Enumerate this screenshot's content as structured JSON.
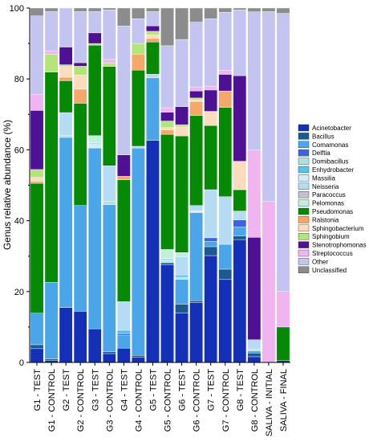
{
  "chart_data": {
    "type": "bar",
    "stacked": true,
    "ylabel": "Genus relative abundance (%)",
    "ylim": [
      0,
      100
    ],
    "yticks": [
      0,
      20,
      40,
      60,
      80,
      100
    ],
    "legend_position": "right",
    "categories": [
      "G1 - TEST",
      "G1 - CONTROL",
      "G2 - TEST",
      "G2 - CONTROL",
      "G3 - TEST",
      "G3 - CONTROL",
      "G4 - TEST",
      "G4 - CONTROL",
      "G5 - TEST",
      "G5 - CONTROL",
      "G6 - TEST",
      "G6 - CONTROL",
      "G7 - TEST",
      "G7 - CONTROL",
      "G8 - TEST",
      "G8 - CONTROL",
      "SALIVA - INITIAL",
      "SALIVA - FINAL"
    ],
    "series": [
      {
        "name": "Acinetobacter",
        "color": "#1530b8",
        "values": [
          3.5,
          0.5,
          15.5,
          14.5,
          9.5,
          2.5,
          4,
          1.5,
          62,
          22,
          11,
          17,
          30,
          20,
          34.5,
          1.5,
          0,
          0.5
        ]
      },
      {
        "name": "Bacillus",
        "color": "#1a5a8c",
        "values": [
          1,
          0.5,
          0,
          0,
          0,
          0.5,
          0,
          0.5,
          0,
          0.5,
          2,
          0.5,
          2.5,
          2.5,
          1,
          1,
          0,
          0
        ]
      },
      {
        "name": "Comamonas",
        "color": "#4aa6e8",
        "values": [
          8,
          21.5,
          48,
          30,
          51,
          41.5,
          3.5,
          58.5,
          17.5,
          0,
          5.5,
          25,
          1.5,
          6,
          2.5,
          0.5,
          0,
          0
        ]
      },
      {
        "name": "Delftia",
        "color": "#3c64e0",
        "values": [
          0,
          0,
          0,
          0,
          0,
          0,
          0.5,
          0,
          0,
          0,
          0,
          0,
          1,
          0,
          2,
          0,
          0,
          0
        ]
      },
      {
        "name": "Domibacillus",
        "color": "#a8e4e4",
        "values": [
          0,
          0,
          0.5,
          0,
          0,
          1,
          0,
          0,
          0,
          0.5,
          0.5,
          0,
          0,
          0,
          0,
          0.5,
          0,
          0
        ]
      },
      {
        "name": "Enhydrobacter",
        "color": "#5cc0ec",
        "values": [
          0,
          0,
          0,
          0,
          0,
          0,
          1,
          0,
          0,
          0,
          0.5,
          0,
          0,
          0,
          0,
          0,
          0,
          0
        ]
      },
      {
        "name": "Massilia",
        "color": "#d0eef6",
        "values": [
          0,
          0,
          0,
          0,
          1,
          0,
          0,
          0,
          0,
          0,
          0,
          0.5,
          0,
          0,
          0,
          0,
          0,
          0
        ]
      },
      {
        "name": "Neisseria",
        "color": "#b6dcf4",
        "values": [
          0,
          0,
          6.5,
          0,
          0.5,
          10,
          8,
          0.5,
          1,
          0.5,
          4,
          1.5,
          13.5,
          11.5,
          2.5,
          2.5,
          0,
          0
        ]
      },
      {
        "name": "Paracoccus",
        "color": "#c0c0d0",
        "values": [
          0,
          0,
          0,
          0,
          0,
          0,
          0,
          0,
          0,
          0,
          0,
          0,
          0,
          0,
          0,
          0,
          0,
          0
        ]
      },
      {
        "name": "Pelomonas",
        "color": "#bef0dc",
        "values": [
          0,
          0,
          0,
          0,
          2,
          0,
          0,
          0,
          0,
          2,
          1,
          0,
          0,
          0,
          0,
          0,
          0,
          0
        ]
      },
      {
        "name": "Pseudomonas",
        "color": "#068a06",
        "values": [
          33,
          59,
          9,
          29,
          25.5,
          28,
          34,
          21.5,
          9,
          26,
          26,
          25.5,
          18,
          21.5,
          6,
          0,
          0,
          9.5
        ]
      },
      {
        "name": "Ralstonia",
        "color": "#f6a86a",
        "values": [
          0.5,
          0,
          1,
          4,
          0,
          0,
          1,
          4.5,
          1,
          1,
          0,
          4,
          0,
          4,
          0,
          0,
          0,
          0
        ]
      },
      {
        "name": "Sphingobacterium",
        "color": "#fcdcbc",
        "values": [
          1,
          0,
          3,
          4,
          0,
          0,
          0,
          0,
          1,
          0.5,
          2,
          0.5,
          4,
          0,
          8,
          0,
          0,
          0
        ]
      },
      {
        "name": "Sphingobium",
        "color": "#b4e47a",
        "values": [
          2,
          5,
          0.5,
          2.5,
          0.5,
          1,
          0,
          3,
          1,
          1.5,
          0.5,
          0.5,
          0,
          0,
          0,
          0,
          0,
          0
        ]
      },
      {
        "name": "Stenotrophomonas",
        "color": "#4e1094",
        "values": [
          15,
          0,
          5,
          1,
          3,
          0,
          6,
          0,
          1.5,
          2,
          4,
          2,
          6,
          4,
          24,
          27,
          0,
          0
        ]
      },
      {
        "name": "Streptococcus",
        "color": "#f0b4f0",
        "values": [
          4,
          1,
          0,
          0,
          0,
          1,
          0,
          0,
          0,
          1,
          0,
          1,
          1,
          1,
          0,
          23,
          45,
          10
        ]
      },
      {
        "name": "Other",
        "color": "#c4c4f0",
        "values": [
          20,
          11,
          11,
          14.5,
          6,
          14,
          36,
          7,
          4,
          14,
          15,
          18.5,
          19,
          14,
          18.5,
          36.5,
          53,
          78.5
        ]
      },
      {
        "name": "Unclassified",
        "color": "#8c8c8c",
        "values": [
          2,
          1,
          0,
          1,
          1,
          0.5,
          5,
          3,
          1,
          8.5,
          7,
          4,
          3,
          1,
          0.5,
          1,
          1,
          1.5
        ]
      }
    ]
  }
}
